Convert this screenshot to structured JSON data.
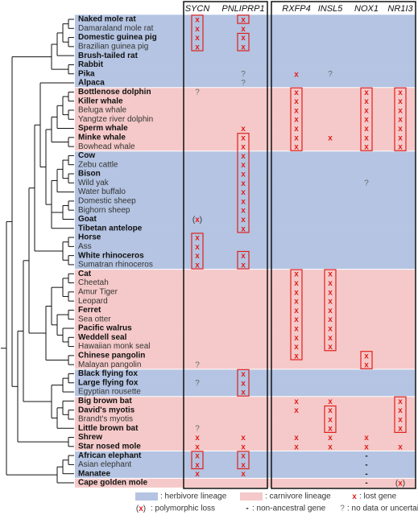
{
  "genes": [
    "SYCN",
    "PNLIPRP1",
    "RXFP4",
    "INSL5",
    "NOX1",
    "NR1I3"
  ],
  "species": [
    {
      "name": "Naked mole rat",
      "bold": true,
      "lineage": 0,
      "marks": [
        "x",
        "x",
        null,
        null,
        null,
        null
      ],
      "boxed": [
        0,
        1
      ]
    },
    {
      "name": "Damaraland mole rat",
      "bold": false,
      "lineage": 0,
      "marks": [
        "x",
        "x",
        null,
        null,
        null,
        null
      ],
      "boxed": [
        0
      ]
    },
    {
      "name": "Domestic guinea pig",
      "bold": true,
      "lineage": 0,
      "marks": [
        "x",
        "x",
        null,
        null,
        null,
        null
      ],
      "boxed": [
        0,
        1
      ]
    },
    {
      "name": "Brazilian guinea pig",
      "bold": false,
      "lineage": 0,
      "marks": [
        "x",
        "x",
        null,
        null,
        null,
        null
      ],
      "boxed": [
        0,
        1
      ]
    },
    {
      "name": "Brush-tailed rat",
      "bold": true,
      "lineage": 0,
      "marks": [
        null,
        null,
        null,
        null,
        null,
        null
      ],
      "boxed": []
    },
    {
      "name": "Rabbit",
      "bold": true,
      "lineage": 0,
      "marks": [
        null,
        null,
        null,
        null,
        null,
        null
      ],
      "boxed": []
    },
    {
      "name": "Pika",
      "bold": true,
      "lineage": 0,
      "marks": [
        null,
        "?",
        "x",
        "?",
        null,
        null
      ],
      "boxed": []
    },
    {
      "name": "Alpaca",
      "bold": true,
      "lineage": 0,
      "marks": [
        null,
        "?",
        null,
        null,
        null,
        null
      ],
      "boxed": []
    },
    {
      "name": "Bottlenose dolphin",
      "bold": true,
      "lineage": 1,
      "marks": [
        "?",
        null,
        "x",
        null,
        "x",
        "x"
      ],
      "boxed": [
        2,
        4,
        5
      ]
    },
    {
      "name": "Killer whale",
      "bold": true,
      "lineage": 1,
      "marks": [
        null,
        null,
        "x",
        null,
        "x",
        "x"
      ],
      "boxed": [
        2,
        4,
        5
      ]
    },
    {
      "name": "Beluga whale",
      "bold": false,
      "lineage": 1,
      "marks": [
        null,
        null,
        "x",
        null,
        "x",
        "x"
      ],
      "boxed": [
        2,
        4,
        5
      ]
    },
    {
      "name": "Yangtze river dolphin",
      "bold": false,
      "lineage": 1,
      "marks": [
        null,
        null,
        "x",
        null,
        "x",
        "x"
      ],
      "boxed": [
        2,
        4,
        5
      ]
    },
    {
      "name": "Sperm whale",
      "bold": true,
      "lineage": 1,
      "marks": [
        null,
        "x",
        "x",
        null,
        "x",
        "x"
      ],
      "boxed": [
        2,
        4,
        5
      ]
    },
    {
      "name": "Minke whale",
      "bold": true,
      "lineage": 1,
      "marks": [
        null,
        "x",
        "x",
        "x",
        "x",
        "x"
      ],
      "boxed": [
        1,
        2,
        4,
        5
      ]
    },
    {
      "name": "Bowhead whale",
      "bold": false,
      "lineage": 1,
      "marks": [
        null,
        "x",
        "x",
        null,
        "x",
        "x"
      ],
      "boxed": [
        1,
        2,
        4,
        5
      ]
    },
    {
      "name": "Cow",
      "bold": true,
      "lineage": 0,
      "marks": [
        null,
        "x",
        null,
        null,
        null,
        null
      ],
      "boxed": [
        1
      ]
    },
    {
      "name": "Zebu cattle",
      "bold": false,
      "lineage": 0,
      "marks": [
        null,
        "x",
        null,
        null,
        null,
        null
      ],
      "boxed": [
        1
      ]
    },
    {
      "name": "Bison",
      "bold": true,
      "lineage": 0,
      "marks": [
        null,
        "x",
        null,
        null,
        null,
        null
      ],
      "boxed": [
        1
      ]
    },
    {
      "name": "Wild yak",
      "bold": false,
      "lineage": 0,
      "marks": [
        null,
        "x",
        null,
        null,
        "?",
        null
      ],
      "boxed": [
        1
      ]
    },
    {
      "name": "Water buffalo",
      "bold": false,
      "lineage": 0,
      "marks": [
        null,
        "x",
        null,
        null,
        null,
        null
      ],
      "boxed": [
        1
      ]
    },
    {
      "name": "Domestic sheep",
      "bold": false,
      "lineage": 0,
      "marks": [
        null,
        "x",
        null,
        null,
        null,
        null
      ],
      "boxed": [
        1
      ]
    },
    {
      "name": "Bighorn sheep",
      "bold": false,
      "lineage": 0,
      "marks": [
        null,
        "x",
        null,
        null,
        null,
        null
      ],
      "boxed": [
        1
      ]
    },
    {
      "name": "Goat",
      "bold": true,
      "lineage": 0,
      "marks": [
        "(x)",
        "x",
        null,
        null,
        null,
        null
      ],
      "boxed": [
        1
      ]
    },
    {
      "name": "Tibetan antelope",
      "bold": true,
      "lineage": 0,
      "marks": [
        null,
        "x",
        null,
        null,
        null,
        null
      ],
      "boxed": [
        1
      ]
    },
    {
      "name": "Horse",
      "bold": true,
      "lineage": 0,
      "marks": [
        "x",
        null,
        null,
        null,
        null,
        null
      ],
      "boxed": [
        0
      ]
    },
    {
      "name": "Ass",
      "bold": false,
      "lineage": 0,
      "marks": [
        "x",
        null,
        null,
        null,
        null,
        null
      ],
      "boxed": [
        0
      ]
    },
    {
      "name": "White rhinoceros",
      "bold": true,
      "lineage": 0,
      "marks": [
        "x",
        "x",
        null,
        null,
        null,
        null
      ],
      "boxed": [
        0,
        1
      ]
    },
    {
      "name": "Sumatran rhinoceros",
      "bold": false,
      "lineage": 0,
      "marks": [
        "x",
        "x",
        null,
        null,
        null,
        null
      ],
      "boxed": [
        0,
        1
      ]
    },
    {
      "name": "Cat",
      "bold": true,
      "lineage": 1,
      "marks": [
        null,
        null,
        "x",
        "x",
        null,
        null
      ],
      "boxed": [
        2,
        3
      ]
    },
    {
      "name": "Cheetah",
      "bold": false,
      "lineage": 1,
      "marks": [
        null,
        null,
        "x",
        "x",
        null,
        null
      ],
      "boxed": [
        2,
        3
      ]
    },
    {
      "name": "Amur Tiger",
      "bold": false,
      "lineage": 1,
      "marks": [
        null,
        null,
        "x",
        "x",
        null,
        null
      ],
      "boxed": [
        2,
        3
      ]
    },
    {
      "name": "Leopard",
      "bold": false,
      "lineage": 1,
      "marks": [
        null,
        null,
        "x",
        "x",
        null,
        null
      ],
      "boxed": [
        2,
        3
      ]
    },
    {
      "name": "Ferret",
      "bold": true,
      "lineage": 1,
      "marks": [
        null,
        null,
        "x",
        "x",
        null,
        null
      ],
      "boxed": [
        2,
        3
      ]
    },
    {
      "name": "Sea otter",
      "bold": false,
      "lineage": 1,
      "marks": [
        null,
        null,
        "x",
        "x",
        null,
        null
      ],
      "boxed": [
        2,
        3
      ]
    },
    {
      "name": "Pacific walrus",
      "bold": true,
      "lineage": 1,
      "marks": [
        null,
        null,
        "x",
        "x",
        null,
        null
      ],
      "boxed": [
        2,
        3
      ]
    },
    {
      "name": "Weddell seal",
      "bold": true,
      "lineage": 1,
      "marks": [
        null,
        null,
        "x",
        "x",
        null,
        null
      ],
      "boxed": [
        2,
        3
      ]
    },
    {
      "name": "Hawaiian monk seal",
      "bold": false,
      "lineage": 1,
      "marks": [
        null,
        null,
        "x",
        "x",
        null,
        null
      ],
      "boxed": [
        2,
        3
      ]
    },
    {
      "name": "Chinese pangolin",
      "bold": true,
      "lineage": 1,
      "marks": [
        null,
        null,
        "x",
        null,
        "x",
        null
      ],
      "boxed": [
        2,
        4
      ]
    },
    {
      "name": "Malayan pangolin",
      "bold": false,
      "lineage": 1,
      "marks": [
        "?",
        null,
        null,
        null,
        "x",
        null
      ],
      "boxed": [
        4
      ]
    },
    {
      "name": "Black flying fox",
      "bold": true,
      "lineage": 0,
      "marks": [
        null,
        "x",
        null,
        null,
        null,
        null
      ],
      "boxed": [
        1
      ]
    },
    {
      "name": "Large flying fox",
      "bold": true,
      "lineage": 0,
      "marks": [
        "?",
        "x",
        null,
        null,
        null,
        null
      ],
      "boxed": [
        1
      ]
    },
    {
      "name": "Egyptian rousette",
      "bold": false,
      "lineage": 0,
      "marks": [
        null,
        "x",
        null,
        null,
        null,
        null
      ],
      "boxed": [
        1
      ]
    },
    {
      "name": "Big brown bat",
      "bold": true,
      "lineage": 1,
      "marks": [
        null,
        null,
        "x",
        "x",
        null,
        "x"
      ],
      "boxed": [
        5
      ]
    },
    {
      "name": "David's myotis",
      "bold": true,
      "lineage": 1,
      "marks": [
        null,
        null,
        "x",
        "x",
        null,
        "x"
      ],
      "boxed": [
        3,
        5
      ]
    },
    {
      "name": "Brandt's myotis",
      "bold": false,
      "lineage": 1,
      "marks": [
        null,
        null,
        null,
        "x",
        null,
        "x"
      ],
      "boxed": [
        3,
        5
      ]
    },
    {
      "name": "Little brown bat",
      "bold": true,
      "lineage": 1,
      "marks": [
        "?",
        null,
        null,
        "x",
        null,
        "x"
      ],
      "boxed": [
        3,
        5
      ]
    },
    {
      "name": "Shrew",
      "bold": true,
      "lineage": 1,
      "marks": [
        "x",
        "x",
        "x",
        "x",
        "x",
        null
      ],
      "boxed": []
    },
    {
      "name": "Star nosed mole",
      "bold": true,
      "lineage": 1,
      "marks": [
        "x",
        "x",
        "x",
        "x",
        "x",
        "x"
      ],
      "boxed": []
    },
    {
      "name": "African elephant",
      "bold": true,
      "lineage": 0,
      "marks": [
        "x",
        "x",
        null,
        null,
        "-",
        null
      ],
      "boxed": [
        0,
        1
      ]
    },
    {
      "name": "Asian elephant",
      "bold": false,
      "lineage": 0,
      "marks": [
        "x",
        "x",
        null,
        null,
        "-",
        null
      ],
      "boxed": [
        0,
        1
      ]
    },
    {
      "name": "Manatee",
      "bold": true,
      "lineage": 0,
      "marks": [
        "x",
        "x",
        null,
        null,
        "-",
        null
      ],
      "boxed": []
    },
    {
      "name": "Cape golden mole",
      "bold": true,
      "lineage": 1,
      "marks": [
        null,
        null,
        null,
        null,
        "-",
        "(x)"
      ],
      "boxed": []
    }
  ],
  "legend": [
    {
      "color": "#b4c4e2",
      "label": ": herbivore lineage"
    },
    {
      "color": "#f5c9c9",
      "label": ": carnivore lineage"
    },
    {
      "symbol": "x",
      "label": ": lost gene"
    },
    {
      "symbol": "(x)",
      "label": ": polymorphic loss"
    },
    {
      "symbol": "-",
      "label": ": non-ancestral gene"
    },
    {
      "symbol": "?",
      "label": ": no data or uncertain"
    }
  ]
}
